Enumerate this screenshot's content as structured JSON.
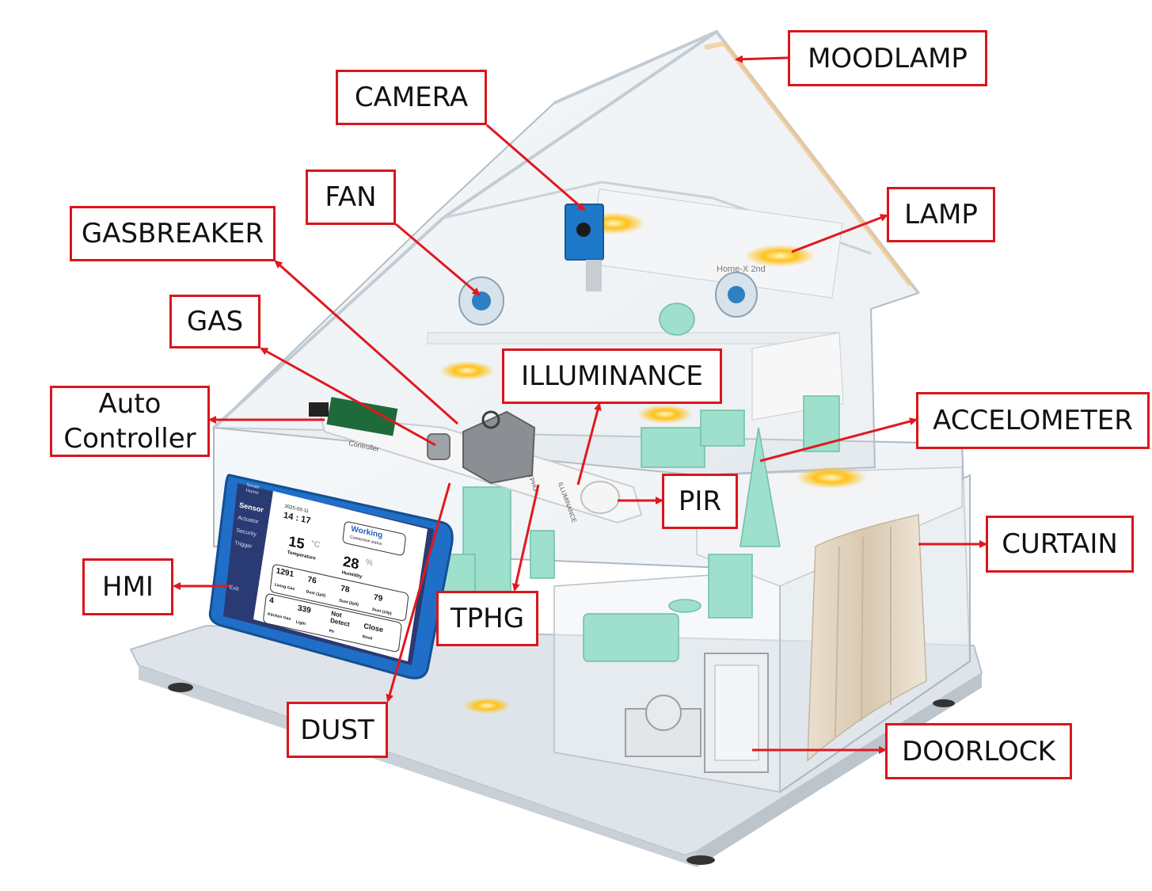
{
  "labels": {
    "moodlamp": "MOODLAMP",
    "camera": "CAMERA",
    "fan": "FAN",
    "lamp": "LAMP",
    "gasbreaker": "GASBREAKER",
    "gas": "GAS",
    "illuminance": "ILLUMINANCE",
    "auto_controller_line1": "Auto",
    "auto_controller_line2": "Controller",
    "accelometer": "ACCELOMETER",
    "pir": "PIR",
    "curtain": "CURTAIN",
    "hmi": "HMI",
    "tphg": "TPHG",
    "dust": "DUST",
    "doorlock": "DOORLOCK"
  },
  "board_text": {
    "model": "Home-X 2nd",
    "controller": "Controller",
    "tphg": "TPHG",
    "illuminance": "ILLUMINANCE"
  },
  "hmi_screen": {
    "brand": "Smart Home",
    "menu": [
      "Sensor",
      "Actuator",
      "Security",
      "Trigger",
      "Exit"
    ],
    "date": "2025-03-11",
    "time": "14 : 17",
    "status": "Working",
    "status_sub": "Connection status",
    "temperature": "15",
    "temperature_unit": "°C",
    "temperature_label": "Temperature",
    "humidity": "28",
    "humidity_unit": "%",
    "humidity_label": "Humidity",
    "row1": [
      {
        "value": "1291",
        "label": "Living Gas"
      },
      {
        "value": "76",
        "label": "Dust (1p0)"
      },
      {
        "value": "78",
        "label": "Dust (2p5)"
      },
      {
        "value": "79",
        "label": "Dust (10p)"
      }
    ],
    "row2": [
      {
        "value": "4",
        "label": "Kitchen Gas"
      },
      {
        "value": "339",
        "label": "Light"
      },
      {
        "value": "Not Detect",
        "label": "Pir"
      },
      {
        "value": "Close",
        "label": "Reed"
      }
    ]
  },
  "colors": {
    "callout_border": "#d9161c",
    "arrow": "#e0191f",
    "hmi_case": "#1f6fc8",
    "furniture": "#9ee0cc",
    "lamp_glow": "#ffc21a",
    "camera": "#1e78c8"
  }
}
